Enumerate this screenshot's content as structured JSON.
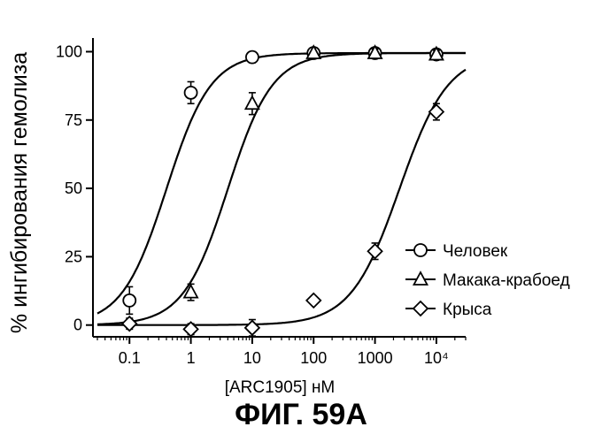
{
  "chart_data": {
    "type": "scatter",
    "title": "ФИГ. 59А",
    "xlabel": "[ARC1905] нМ",
    "ylabel": "% ингибирования гемолиза",
    "x_scale": "log",
    "xlim": [
      0.03,
      30000
    ],
    "ylim": [
      -3,
      105
    ],
    "x_ticks": [
      {
        "value": 0.1,
        "label": "0.1"
      },
      {
        "value": 1,
        "label": "1"
      },
      {
        "value": 10,
        "label": "10"
      },
      {
        "value": 100,
        "label": "100"
      },
      {
        "value": 1000,
        "label": "1000"
      },
      {
        "value": 10000,
        "label": "10⁴"
      }
    ],
    "y_ticks": [
      {
        "value": 0,
        "label": "0"
      },
      {
        "value": 25,
        "label": "25"
      },
      {
        "value": 50,
        "label": "50"
      },
      {
        "value": 75,
        "label": "75"
      },
      {
        "value": 100,
        "label": "100"
      }
    ],
    "legend_position": "right",
    "series": [
      {
        "name": "Человек",
        "marker": "circle",
        "x": [
          0.1,
          1,
          10,
          100,
          1000,
          10000
        ],
        "y": [
          9,
          85,
          98,
          99.5,
          99.5,
          99
        ],
        "err": [
          5,
          4,
          2,
          2,
          1.5,
          1.5
        ],
        "fit": {
          "bottom": 0,
          "top": 99.5,
          "ec50": 0.4,
          "hill": 1.2
        }
      },
      {
        "name": "Макака-крабоед",
        "marker": "triangle",
        "x": [
          1,
          10,
          100,
          1000,
          10000
        ],
        "y": [
          12,
          81,
          99.5,
          99.5,
          99
        ],
        "err": [
          3,
          4,
          2,
          1.5,
          1.5
        ],
        "fit": {
          "bottom": 0,
          "top": 99.5,
          "ec50": 4,
          "hill": 1.2
        }
      },
      {
        "name": "Крыса",
        "marker": "diamond",
        "x": [
          0.1,
          1,
          10,
          100,
          1000,
          10000
        ],
        "y": [
          0.5,
          -1.5,
          -1,
          9,
          27,
          78
        ],
        "err": [
          2,
          2,
          3,
          1,
          3,
          3
        ],
        "fit": {
          "bottom": 0,
          "top": 99.5,
          "ec50": 2500,
          "hill": 1.1
        }
      }
    ]
  }
}
